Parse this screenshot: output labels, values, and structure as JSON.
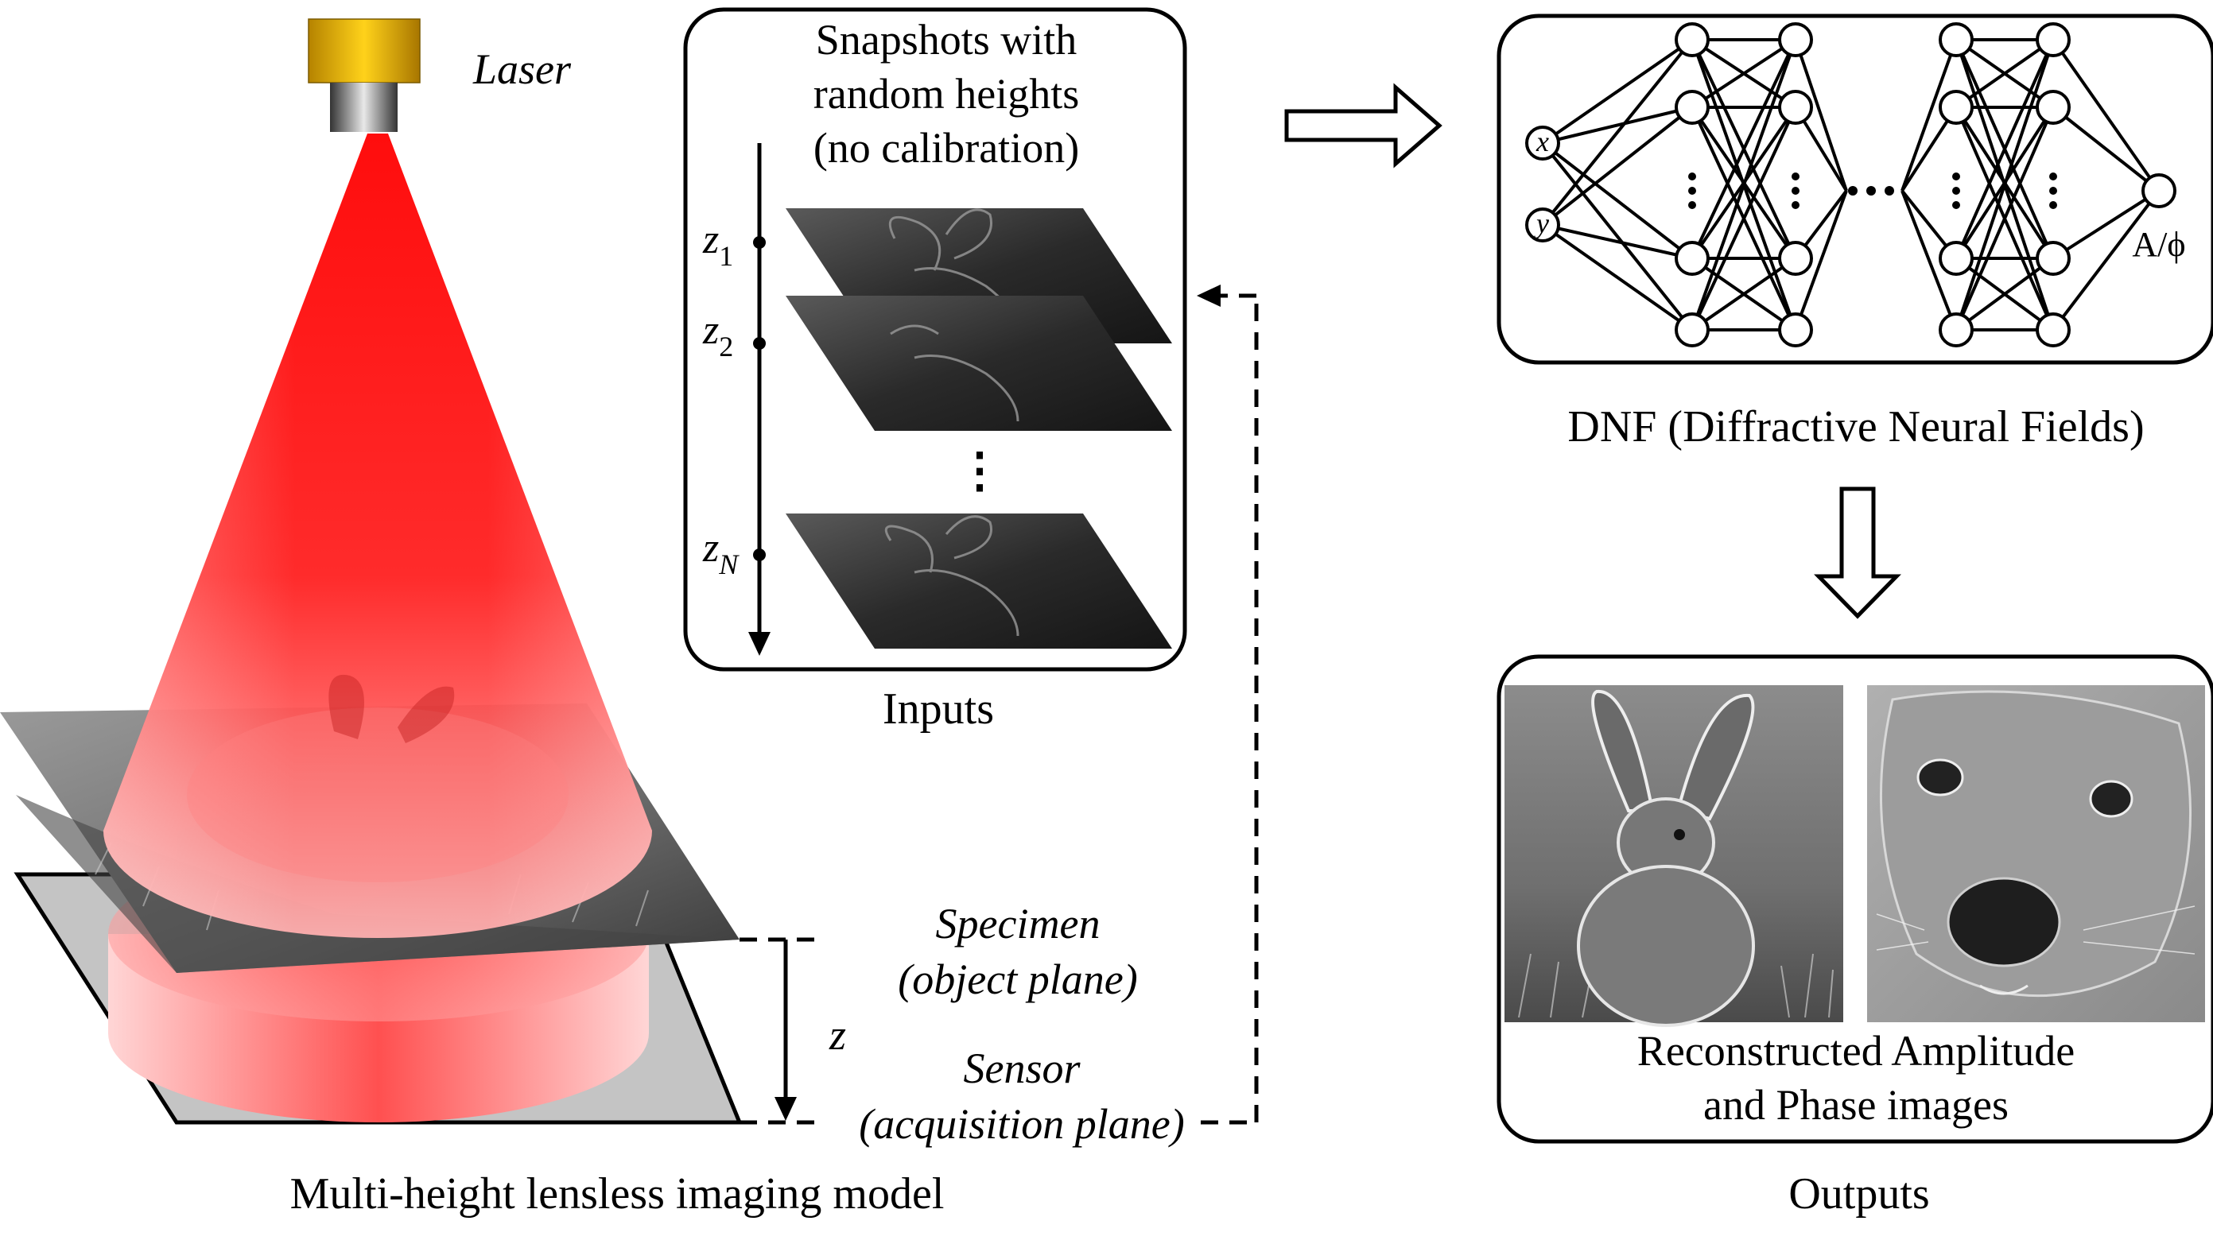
{
  "laser_label": "Laser",
  "setup": {
    "specimen_label": "Specimen",
    "specimen_sub": "(object plane)",
    "sensor_label": "Sensor",
    "sensor_sub": "(acquisition plane)",
    "distance_label": "z",
    "caption": "Multi-height lensless imaging model"
  },
  "inputs": {
    "title_lines": [
      "Snapshots with",
      "random heights",
      "(no calibration)"
    ],
    "heights": [
      {
        "var": "z",
        "sub": "1"
      },
      {
        "var": "z",
        "sub": "2"
      },
      {
        "var": "z",
        "sub": "N"
      }
    ],
    "ellipsis": "⋮",
    "caption": "Inputs"
  },
  "network": {
    "input_nodes": [
      "x",
      "y"
    ],
    "output_label": "A/ϕ",
    "caption": "DNF (Diffractive Neural Fields)"
  },
  "outputs": {
    "text_lines": [
      "Reconstructed Amplitude",
      "and Phase images"
    ],
    "caption": "Outputs"
  },
  "colors": {
    "beam": "#ff1a1a",
    "laser_body": "#f0b400",
    "plane_gray": "#bdbdbd",
    "stroke": "#000000"
  }
}
